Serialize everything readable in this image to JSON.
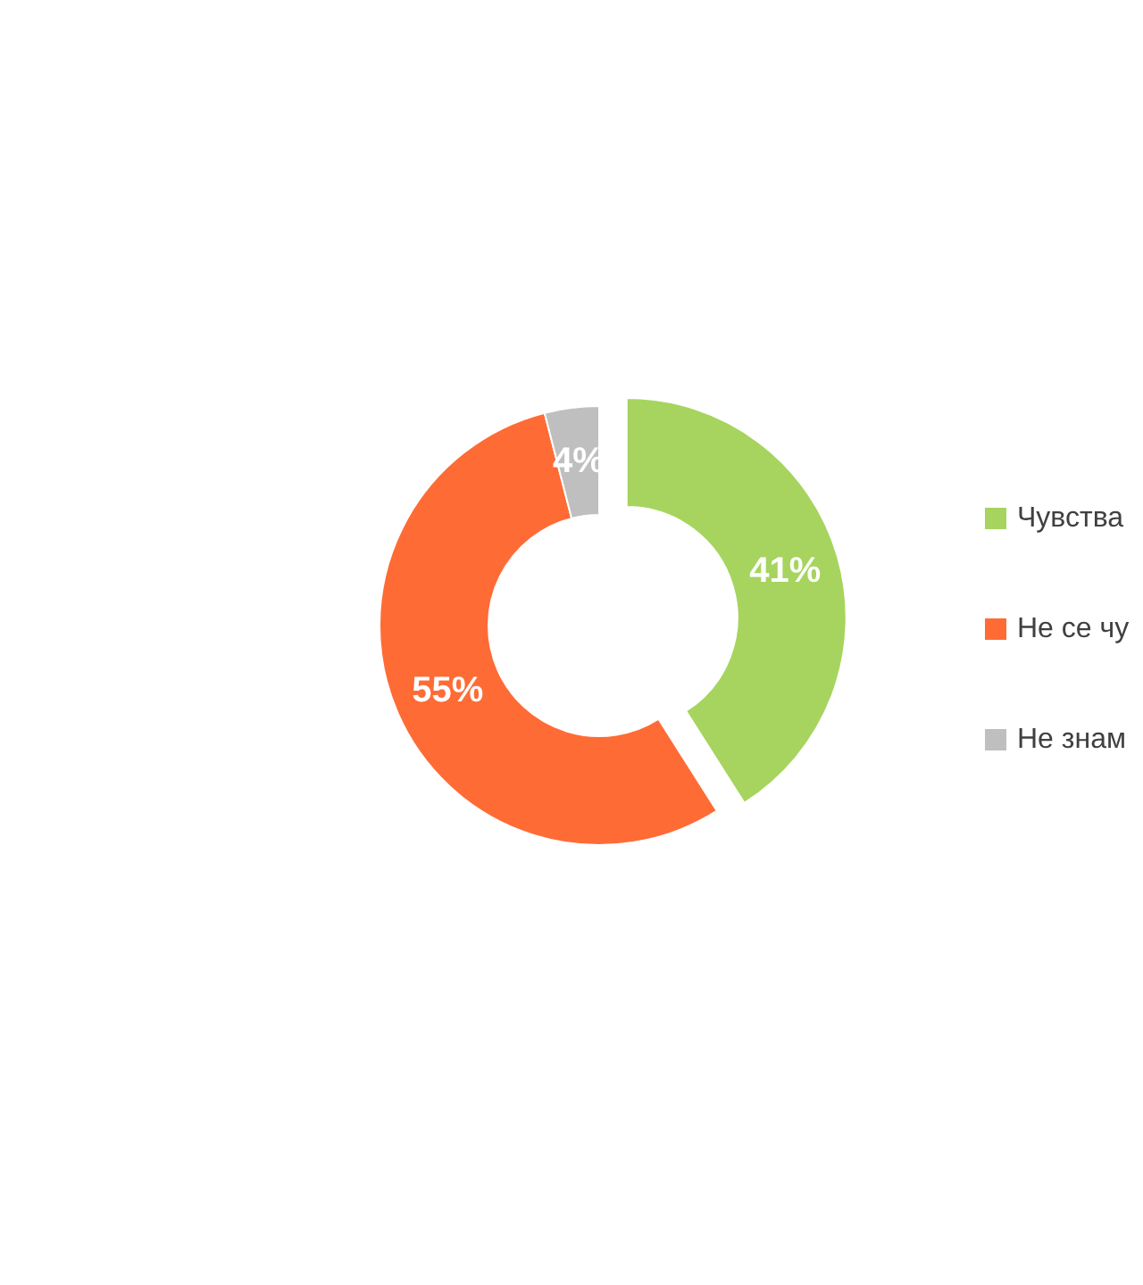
{
  "chart_data": {
    "type": "donut",
    "categories": [
      "Чувства",
      "Не се чу",
      "Не знам"
    ],
    "values": [
      41,
      55,
      4
    ],
    "colors": [
      "#a6d45e",
      "#ff6b35",
      "#bfbfbf"
    ],
    "value_labels": [
      "41%",
      "55%",
      "4%"
    ],
    "legend": "right"
  }
}
